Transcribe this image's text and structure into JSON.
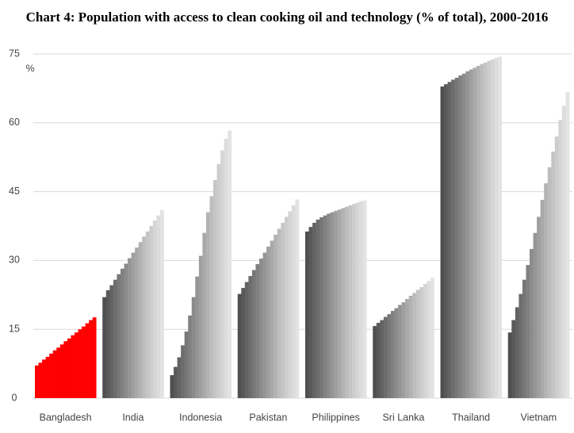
{
  "chart_data": {
    "type": "bar",
    "title": "Chart 4: Population with access to clean cooking oil and technology (% of total), 2000-2016",
    "y_unit": "%",
    "categories": [
      "Bangladesh",
      "India",
      "Indonesia",
      "Pakistan",
      "Philippines",
      "Sri Lanka",
      "Thailand",
      "Vietnam"
    ],
    "values": [
      [
        7.1,
        7.7,
        8.4,
        9.0,
        9.7,
        10.4,
        11.0,
        11.7,
        12.4,
        13.0,
        13.7,
        14.3,
        15.0,
        15.6,
        16.3,
        17.0,
        17.6
      ],
      [
        22.0,
        23.5,
        24.6,
        25.8,
        27.0,
        28.2,
        29.3,
        30.5,
        31.7,
        32.8,
        34.0,
        35.2,
        36.3,
        37.5,
        38.7,
        39.8,
        41.0
      ],
      [
        5.0,
        6.8,
        8.9,
        11.5,
        14.5,
        18.0,
        22.0,
        26.5,
        31.0,
        36.0,
        40.5,
        44.0,
        47.5,
        51.0,
        54.0,
        56.5,
        58.3
      ],
      [
        22.7,
        24.0,
        25.3,
        26.6,
        27.9,
        29.2,
        30.4,
        31.7,
        33.0,
        34.3,
        35.6,
        36.9,
        38.2,
        39.5,
        40.7,
        42.0,
        43.3
      ],
      [
        36.3,
        37.3,
        38.2,
        38.9,
        39.4,
        39.8,
        40.2,
        40.5,
        40.8,
        41.1,
        41.4,
        41.7,
        42.0,
        42.3,
        42.6,
        42.9,
        43.1
      ],
      [
        15.7,
        16.4,
        17.0,
        17.7,
        18.3,
        19.0,
        19.6,
        20.3,
        20.9,
        21.6,
        22.3,
        22.9,
        23.6,
        24.2,
        24.9,
        25.5,
        26.2
      ],
      [
        67.9,
        68.4,
        68.9,
        69.4,
        69.8,
        70.3,
        70.7,
        71.2,
        71.6,
        72.0,
        72.4,
        72.8,
        73.1,
        73.5,
        73.8,
        74.1,
        74.4
      ],
      [
        14.3,
        17.0,
        19.8,
        22.7,
        25.8,
        29.0,
        32.5,
        36.0,
        39.5,
        43.2,
        46.8,
        50.3,
        53.7,
        57.0,
        60.6,
        63.7,
        66.7
      ]
    ],
    "bar_colors": [
      "#4f4f4f",
      "#595959",
      "#636363",
      "#6d6d6d",
      "#777777",
      "#818181",
      "#8b8b8b",
      "#959595",
      "#9f9f9f",
      "#a9a9a9",
      "#b3b3b3",
      "#bdbdbd",
      "#c5c5c5",
      "#cdcdcd",
      "#d5d5d5",
      "#dcdcdc",
      "#e3e3e3"
    ],
    "highlight_index": 0,
    "highlight_color": "#ff0000",
    "ylim": [
      0,
      75
    ],
    "yticks": [
      0,
      15,
      30,
      45,
      60,
      75
    ],
    "grid": true
  }
}
